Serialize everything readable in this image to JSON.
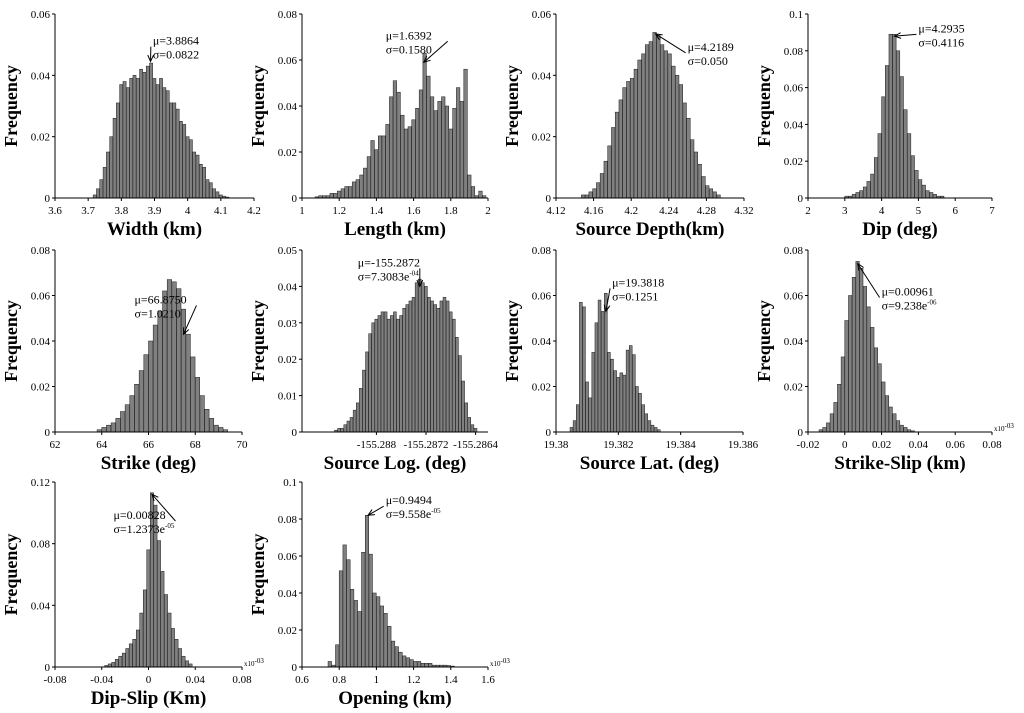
{
  "chart_data": [
    {
      "type": "bar",
      "id": "width",
      "xlabel": "Width (km)",
      "ylabel": "Frequency",
      "xlim": [
        3.6,
        4.2
      ],
      "ylim": [
        0,
        0.06
      ],
      "xticks": [
        "3.6",
        "3.7",
        "3.8",
        "3.9",
        "4",
        "4.1",
        "4.2"
      ],
      "yticks": [
        "0",
        "0.02",
        "0.04",
        "0.06"
      ],
      "mu": "μ=3.8864",
      "sigma": "σ=0.0822",
      "sigma_exp": "",
      "multiplier": "",
      "x": [
        3.72,
        3.73,
        3.74,
        3.75,
        3.76,
        3.77,
        3.78,
        3.79,
        3.8,
        3.81,
        3.82,
        3.83,
        3.84,
        3.85,
        3.86,
        3.87,
        3.88,
        3.89,
        3.9,
        3.91,
        3.92,
        3.93,
        3.94,
        3.95,
        3.96,
        3.97,
        3.98,
        3.99,
        4.0,
        4.01,
        4.02,
        4.03,
        4.04,
        4.05,
        4.06,
        4.07,
        4.08,
        4.09,
        4.1,
        4.11,
        4.12
      ],
      "values": [
        0.001,
        0.003,
        0.006,
        0.01,
        0.015,
        0.02,
        0.026,
        0.031,
        0.037,
        0.038,
        0.036,
        0.039,
        0.04,
        0.039,
        0.042,
        0.041,
        0.043,
        0.044,
        0.039,
        0.037,
        0.039,
        0.036,
        0.035,
        0.031,
        0.031,
        0.029,
        0.025,
        0.024,
        0.02,
        0.019,
        0.015,
        0.014,
        0.011,
        0.01,
        0.006,
        0.005,
        0.003,
        0.002,
        0.001,
        0.0006,
        0.0003
      ],
      "annotation_point": [
        3.888,
        0.0445
      ],
      "text_anchor": [
        3.895,
        0.05
      ]
    },
    {
      "type": "bar",
      "id": "length",
      "xlabel": "Length (km)",
      "ylabel": "Frequency",
      "xlim": [
        1,
        2
      ],
      "ylim": [
        0,
        0.08
      ],
      "xticks": [
        "1",
        "1.2",
        "1.4",
        "1.6",
        "1.8",
        "2"
      ],
      "yticks": [
        "0",
        "0.02",
        "0.04",
        "0.06",
        "0.08"
      ],
      "mu": "μ=1.6392",
      "sigma": "σ=0.1580",
      "sigma_exp": "",
      "multiplier": "",
      "x": [
        1.08,
        1.1,
        1.12,
        1.14,
        1.16,
        1.18,
        1.2,
        1.22,
        1.24,
        1.26,
        1.28,
        1.3,
        1.32,
        1.34,
        1.36,
        1.38,
        1.4,
        1.42,
        1.44,
        1.46,
        1.48,
        1.5,
        1.52,
        1.54,
        1.56,
        1.58,
        1.6,
        1.62,
        1.64,
        1.66,
        1.68,
        1.7,
        1.72,
        1.74,
        1.76,
        1.78,
        1.8,
        1.82,
        1.84,
        1.86,
        1.88,
        1.9,
        1.92,
        1.94,
        1.96,
        1.98
      ],
      "values": [
        0.0005,
        0.001,
        0.001,
        0.001,
        0.002,
        0.002,
        0.003,
        0.004,
        0.005,
        0.005,
        0.007,
        0.008,
        0.01,
        0.013,
        0.018,
        0.025,
        0.021,
        0.027,
        0.027,
        0.032,
        0.044,
        0.051,
        0.046,
        0.036,
        0.03,
        0.031,
        0.034,
        0.039,
        0.047,
        0.063,
        0.053,
        0.044,
        0.038,
        0.042,
        0.044,
        0.04,
        0.03,
        0.039,
        0.048,
        0.042,
        0.056,
        0.01,
        0.005,
        0.001,
        0.003,
        0.001
      ],
      "annotation_point": [
        1.655,
        0.059
      ],
      "text_anchor": [
        1.45,
        0.069
      ]
    },
    {
      "type": "bar",
      "id": "depth",
      "xlabel": "Source Depth(km)",
      "ylabel": "Frequency",
      "xlim": [
        4.12,
        4.32
      ],
      "ylim": [
        0,
        0.06
      ],
      "xticks": [
        "4.12",
        "4.16",
        "4.2",
        "4.24",
        "4.28",
        "4.32"
      ],
      "yticks": [
        "0",
        "0.02",
        "0.04",
        "0.06"
      ],
      "mu": "μ=4.2189",
      "sigma": "σ=0.050",
      "sigma_exp": "",
      "multiplier": "",
      "x": [
        4.149,
        4.153,
        4.157,
        4.161,
        4.165,
        4.169,
        4.173,
        4.177,
        4.181,
        4.185,
        4.189,
        4.193,
        4.197,
        4.201,
        4.205,
        4.209,
        4.213,
        4.217,
        4.221,
        4.225,
        4.229,
        4.233,
        4.237,
        4.241,
        4.245,
        4.249,
        4.253,
        4.257,
        4.261,
        4.265,
        4.269,
        4.273,
        4.277,
        4.281,
        4.285,
        4.289,
        4.293
      ],
      "values": [
        0.001,
        0.001,
        0.002,
        0.003,
        0.005,
        0.008,
        0.012,
        0.017,
        0.023,
        0.028,
        0.032,
        0.036,
        0.038,
        0.039,
        0.042,
        0.045,
        0.047,
        0.05,
        0.051,
        0.054,
        0.053,
        0.05,
        0.048,
        0.047,
        0.043,
        0.04,
        0.037,
        0.031,
        0.026,
        0.019,
        0.015,
        0.011,
        0.007,
        0.004,
        0.003,
        0.002,
        0.001
      ],
      "annotation_point": [
        4.226,
        0.0535
      ],
      "text_anchor": [
        4.26,
        0.048
      ]
    },
    {
      "type": "bar",
      "id": "dip",
      "xlabel": "Dip (deg)",
      "ylabel": "Frequency",
      "xlim": [
        2,
        7
      ],
      "ylim": [
        0,
        0.1
      ],
      "xticks": [
        "2",
        "3",
        "4",
        "5",
        "6",
        "7"
      ],
      "yticks": [
        "0",
        "0.02",
        "0.04",
        "0.06",
        "0.08",
        "0.1"
      ],
      "mu": "μ=4.2935",
      "sigma": "σ=0.4116",
      "sigma_exp": "",
      "multiplier": "",
      "x": [
        3.05,
        3.15,
        3.25,
        3.35,
        3.45,
        3.55,
        3.65,
        3.75,
        3.85,
        3.95,
        4.05,
        4.15,
        4.25,
        4.35,
        4.45,
        4.55,
        4.65,
        4.75,
        4.85,
        4.95,
        5.05,
        5.15,
        5.25,
        5.35,
        5.45,
        5.55,
        5.65
      ],
      "values": [
        0.001,
        0.001,
        0.002,
        0.003,
        0.004,
        0.006,
        0.009,
        0.013,
        0.022,
        0.035,
        0.055,
        0.072,
        0.089,
        0.089,
        0.08,
        0.066,
        0.048,
        0.035,
        0.023,
        0.015,
        0.01,
        0.007,
        0.004,
        0.003,
        0.002,
        0.001,
        0.001
      ],
      "annotation_point": [
        4.35,
        0.088
      ],
      "text_anchor": [
        5.0,
        0.09
      ]
    },
    {
      "type": "bar",
      "id": "strike",
      "xlabel": "Strike (deg)",
      "ylabel": "Frequency",
      "xlim": [
        62,
        70
      ],
      "ylim": [
        0,
        0.08
      ],
      "xticks": [
        "62",
        "64",
        "66",
        "68",
        "70"
      ],
      "yticks": [
        "0",
        "0.02",
        "0.04",
        "0.06",
        "0.08"
      ],
      "mu": "μ=66.8750",
      "sigma": "σ=1.0210",
      "sigma_exp": "",
      "multiplier": "",
      "x": [
        63.9,
        64.1,
        64.3,
        64.5,
        64.7,
        64.9,
        65.1,
        65.3,
        65.5,
        65.7,
        65.9,
        66.1,
        66.3,
        66.5,
        66.7,
        66.9,
        67.1,
        67.3,
        67.5,
        67.7,
        67.9,
        68.1,
        68.3,
        68.5,
        68.7,
        68.9,
        69.1,
        69.3
      ],
      "values": [
        0.001,
        0.002,
        0.003,
        0.004,
        0.006,
        0.009,
        0.012,
        0.016,
        0.021,
        0.027,
        0.034,
        0.04,
        0.047,
        0.053,
        0.062,
        0.067,
        0.066,
        0.063,
        0.054,
        0.043,
        0.033,
        0.024,
        0.016,
        0.01,
        0.006,
        0.003,
        0.002,
        0.001
      ],
      "annotation_point": [
        67.5,
        0.043
      ],
      "text_anchor": [
        65.4,
        0.0565
      ]
    },
    {
      "type": "bar",
      "id": "log",
      "xlabel": "Source Log. (deg)",
      "ylabel": "Frequency",
      "xlim": [
        -155.2892,
        -155.2862
      ],
      "ylim": [
        0,
        0.05
      ],
      "xticks": [
        "-155.288",
        "-155.2872",
        "-155.2864"
      ],
      "xtick_values": [
        -155.288,
        -155.2872,
        -155.2864
      ],
      "yticks": [
        "0",
        "0.01",
        "0.02",
        "0.03",
        "0.04",
        "0.05"
      ],
      "mu": "μ=-155.2872",
      "sigma": "σ=7.3083e",
      "sigma_exp": "-04",
      "multiplier": "",
      "x": [
        -155.28865,
        -155.2886,
        -155.28855,
        -155.2885,
        -155.28845,
        -155.2884,
        -155.28835,
        -155.2883,
        -155.28825,
        -155.2882,
        -155.28815,
        -155.2881,
        -155.28805,
        -155.288,
        -155.28795,
        -155.2879,
        -155.28785,
        -155.2878,
        -155.28775,
        -155.2877,
        -155.28765,
        -155.2876,
        -155.28755,
        -155.2875,
        -155.28745,
        -155.2874,
        -155.28735,
        -155.2873,
        -155.28725,
        -155.2872,
        -155.28715,
        -155.2871,
        -155.28705,
        -155.287,
        -155.28695,
        -155.2869,
        -155.28685,
        -155.2868,
        -155.28675,
        -155.2867,
        -155.28665,
        -155.2866,
        -155.28655,
        -155.2865,
        -155.28645,
        -155.2864
      ],
      "values": [
        0.0005,
        0.001,
        0.001,
        0.002,
        0.003,
        0.004,
        0.006,
        0.008,
        0.012,
        0.017,
        0.022,
        0.027,
        0.03,
        0.031,
        0.032,
        0.033,
        0.033,
        0.031,
        0.032,
        0.033,
        0.031,
        0.032,
        0.034,
        0.035,
        0.036,
        0.037,
        0.041,
        0.042,
        0.041,
        0.04,
        0.037,
        0.036,
        0.035,
        0.034,
        0.036,
        0.037,
        0.036,
        0.033,
        0.031,
        0.026,
        0.021,
        0.014,
        0.008,
        0.004,
        0.002,
        0.001
      ],
      "annotation_point": [
        -155.2873,
        0.04
      ],
      "text_anchor": [
        -155.2883,
        0.0455
      ]
    },
    {
      "type": "bar",
      "id": "lat",
      "xlabel": "Source Lat. (deg)",
      "ylabel": "Frequency",
      "xlim": [
        19.38,
        19.386
      ],
      "ylim": [
        0,
        0.08
      ],
      "xticks": [
        "19.38",
        "19.382",
        "19.384",
        "19.386"
      ],
      "yticks": [
        "0",
        "0.02",
        "0.04",
        "0.06",
        "0.08"
      ],
      "mu": "μ=19.3818",
      "sigma": "σ=0.1251",
      "sigma_exp": "",
      "multiplier": "",
      "x": [
        19.3805,
        19.3806,
        19.3807,
        19.3808,
        19.3809,
        19.381,
        19.3811,
        19.3812,
        19.3813,
        19.3814,
        19.3815,
        19.3816,
        19.3817,
        19.3818,
        19.3819,
        19.382,
        19.3821,
        19.3822,
        19.3823,
        19.3824,
        19.3825,
        19.3826,
        19.3827,
        19.3828,
        19.3829,
        19.383,
        19.3831,
        19.3832,
        19.3833
      ],
      "values": [
        0.002,
        0.005,
        0.012,
        0.057,
        0.055,
        0.022,
        0.015,
        0.035,
        0.048,
        0.058,
        0.053,
        0.061,
        0.035,
        0.032,
        0.027,
        0.024,
        0.026,
        0.025,
        0.036,
        0.038,
        0.034,
        0.02,
        0.017,
        0.012,
        0.008,
        0.005,
        0.003,
        0.002,
        0.001
      ],
      "annotation_point": [
        19.3816,
        0.053
      ],
      "text_anchor": [
        19.3818,
        0.064
      ]
    },
    {
      "type": "bar",
      "id": "strike_slip",
      "xlabel": "Strike-Slip (km)",
      "ylabel": "Frequency",
      "xlim": [
        -0.02,
        0.08
      ],
      "ylim": [
        0,
        0.08
      ],
      "xticks": [
        "-0.02",
        "0",
        "0.02",
        "0.04",
        "0.06",
        "0.08"
      ],
      "yticks": [
        "0",
        "0.02",
        "0.04",
        "0.06",
        "0.08"
      ],
      "mu": "μ=0.00961",
      "sigma": "σ=9.238e",
      "sigma_exp": "-06",
      "multiplier": "x10",
      "multiplier_exp": "-03",
      "x": [
        -0.013,
        -0.011,
        -0.009,
        -0.007,
        -0.005,
        -0.003,
        -0.001,
        0.001,
        0.003,
        0.005,
        0.007,
        0.009,
        0.011,
        0.013,
        0.015,
        0.017,
        0.019,
        0.021,
        0.023,
        0.025,
        0.027,
        0.029,
        0.031,
        0.033,
        0.035,
        0.037
      ],
      "values": [
        0.001,
        0.002,
        0.004,
        0.008,
        0.013,
        0.021,
        0.033,
        0.049,
        0.06,
        0.068,
        0.075,
        0.072,
        0.064,
        0.055,
        0.046,
        0.037,
        0.03,
        0.022,
        0.016,
        0.011,
        0.008,
        0.005,
        0.003,
        0.002,
        0.001,
        0.0005
      ],
      "annotation_point": [
        0.007,
        0.074
      ],
      "text_anchor": [
        0.02,
        0.06
      ]
    },
    {
      "type": "bar",
      "id": "dip_slip",
      "xlabel": "Dip-Slip (Km)",
      "ylabel": "Frequency",
      "xlim": [
        -0.08,
        0.08
      ],
      "ylim": [
        0,
        0.12
      ],
      "xticks": [
        "-0.08",
        "-0.04",
        "0",
        "0.04",
        "0.08"
      ],
      "yticks": [
        "0",
        "0.04",
        "0.08",
        "0.12"
      ],
      "mu": "μ=0.00828",
      "sigma": "σ=1.2373e",
      "sigma_exp": "-05",
      "multiplier": "x10",
      "multiplier_exp": "-03",
      "x": [
        -0.036,
        -0.033,
        -0.03,
        -0.027,
        -0.024,
        -0.021,
        -0.018,
        -0.015,
        -0.012,
        -0.009,
        -0.006,
        -0.003,
        0.0,
        0.003,
        0.006,
        0.009,
        0.012,
        0.015,
        0.018,
        0.021,
        0.024,
        0.027,
        0.03,
        0.033,
        0.036
      ],
      "values": [
        0.001,
        0.002,
        0.003,
        0.005,
        0.007,
        0.009,
        0.012,
        0.015,
        0.018,
        0.024,
        0.035,
        0.05,
        0.076,
        0.113,
        0.105,
        0.082,
        0.062,
        0.047,
        0.035,
        0.025,
        0.018,
        0.012,
        0.007,
        0.004,
        0.002
      ],
      "annotation_point": [
        0.003,
        0.112
      ],
      "text_anchor": [
        -0.03,
        0.096
      ]
    },
    {
      "type": "bar",
      "id": "opening",
      "xlabel": "Opening (km)",
      "ylabel": "Frequency",
      "xlim": [
        0.6,
        1.6
      ],
      "ylim": [
        0,
        0.1
      ],
      "xticks": [
        "0.6",
        "0.8",
        "1",
        "1.2",
        "1.4",
        "1.6"
      ],
      "yticks": [
        "0",
        "0.02",
        "0.04",
        "0.06",
        "0.08",
        "0.1"
      ],
      "mu": "μ=0.9494",
      "sigma": "σ=9.558e",
      "sigma_exp": "-05",
      "multiplier": "x10",
      "multiplier_exp": "-03",
      "x": [
        0.75,
        0.77,
        0.79,
        0.81,
        0.83,
        0.85,
        0.87,
        0.89,
        0.91,
        0.93,
        0.95,
        0.97,
        0.99,
        1.01,
        1.03,
        1.05,
        1.07,
        1.09,
        1.11,
        1.13,
        1.15,
        1.17,
        1.19,
        1.21,
        1.23,
        1.25,
        1.27,
        1.29,
        1.31,
        1.33,
        1.35,
        1.37,
        1.39,
        1.41
      ],
      "values": [
        0.003,
        0.001,
        0.012,
        0.052,
        0.066,
        0.058,
        0.042,
        0.036,
        0.03,
        0.062,
        0.082,
        0.061,
        0.04,
        0.038,
        0.033,
        0.029,
        0.022,
        0.014,
        0.011,
        0.008,
        0.006,
        0.005,
        0.004,
        0.003,
        0.003,
        0.002,
        0.002,
        0.002,
        0.001,
        0.001,
        0.001,
        0.001,
        0.0008,
        0.0005
      ],
      "annotation_point": [
        0.955,
        0.082
      ],
      "text_anchor": [
        1.05,
        0.088
      ]
    }
  ]
}
